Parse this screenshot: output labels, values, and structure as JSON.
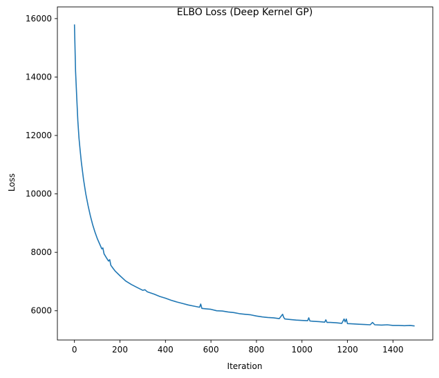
{
  "chart_data": {
    "type": "line",
    "title": "ELBO Loss (Deep Kernel GP)",
    "xlabel": "Iteration",
    "ylabel": "Loss",
    "xlim": [
      -75,
      1575
    ],
    "ylim": [
      5000,
      16400
    ],
    "xticks": [
      0,
      200,
      400,
      600,
      800,
      1000,
      1200,
      1400
    ],
    "xtick_labels": [
      "0",
      "200",
      "400",
      "600",
      "800",
      "1000",
      "1200",
      "1400"
    ],
    "yticks": [
      6000,
      8000,
      10000,
      12000,
      14000,
      16000
    ],
    "ytick_labels": [
      "6000",
      "8000",
      "10000",
      "12000",
      "14000",
      "16000"
    ],
    "grid": false,
    "series": [
      {
        "color": "#1f77b4",
        "x": [
          0,
          5,
          10,
          15,
          20,
          25,
          30,
          40,
          50,
          60,
          70,
          80,
          90,
          100,
          110,
          120,
          125,
          130,
          140,
          150,
          155,
          160,
          170,
          180,
          200,
          225,
          250,
          275,
          300,
          310,
          320,
          350,
          375,
          400,
          425,
          450,
          475,
          500,
          525,
          550,
          555,
          560,
          575,
          600,
          625,
          650,
          675,
          700,
          725,
          750,
          775,
          800,
          825,
          850,
          875,
          900,
          915,
          920,
          925,
          950,
          975,
          1000,
          1025,
          1030,
          1035,
          1050,
          1075,
          1100,
          1105,
          1110,
          1125,
          1150,
          1175,
          1185,
          1190,
          1195,
          1200,
          1225,
          1250,
          1275,
          1300,
          1310,
          1320,
          1350,
          1375,
          1400,
          1425,
          1450,
          1475,
          1495
        ],
        "y": [
          15800,
          14200,
          13300,
          12500,
          11900,
          11500,
          11100,
          10500,
          10000,
          9600,
          9250,
          8950,
          8700,
          8480,
          8300,
          8120,
          8150,
          7950,
          7820,
          7700,
          7750,
          7560,
          7450,
          7350,
          7200,
          7020,
          6900,
          6800,
          6700,
          6720,
          6650,
          6570,
          6490,
          6430,
          6360,
          6300,
          6250,
          6200,
          6160,
          6120,
          6230,
          6080,
          6070,
          6050,
          6000,
          5990,
          5960,
          5940,
          5900,
          5880,
          5860,
          5820,
          5790,
          5770,
          5760,
          5730,
          5880,
          5770,
          5720,
          5700,
          5680,
          5670,
          5660,
          5760,
          5650,
          5640,
          5630,
          5610,
          5690,
          5600,
          5600,
          5590,
          5570,
          5720,
          5620,
          5720,
          5560,
          5550,
          5540,
          5530,
          5520,
          5600,
          5520,
          5510,
          5520,
          5500,
          5500,
          5490,
          5500,
          5480
        ]
      }
    ]
  }
}
